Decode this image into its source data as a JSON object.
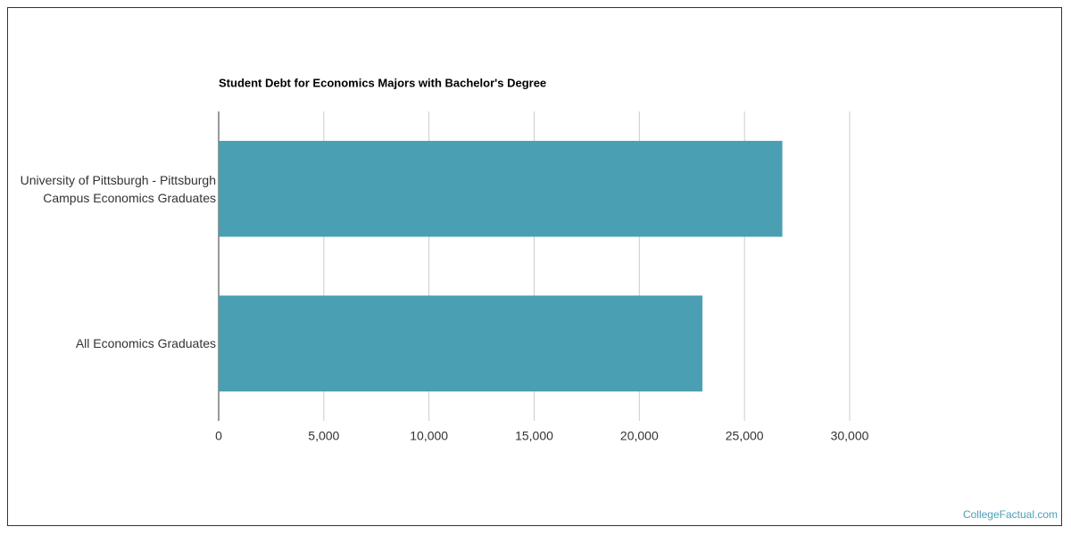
{
  "chart_data": {
    "type": "barh",
    "title": "Student Debt for Economics Majors with Bachelor's Degree",
    "categories": [
      "University of Pittsburgh - Pittsburgh Campus Economics Graduates",
      "All Economics Graduates"
    ],
    "values": [
      26800,
      23000
    ],
    "color": "#4aa0b2",
    "xlim": [
      0,
      30000
    ],
    "xticks": [
      0,
      {
        "value": 5000,
        "label": "5,000"
      },
      {
        "value": 10000,
        "label": "10,000"
      },
      {
        "value": 15000,
        "label": "15,000"
      },
      {
        "value": 20000,
        "label": "20,000"
      },
      {
        "value": 25000,
        "label": "25,000"
      },
      {
        "value": 30000,
        "label": "30,000"
      }
    ],
    "grid": true,
    "watermark": "CollegeFactual.com"
  }
}
